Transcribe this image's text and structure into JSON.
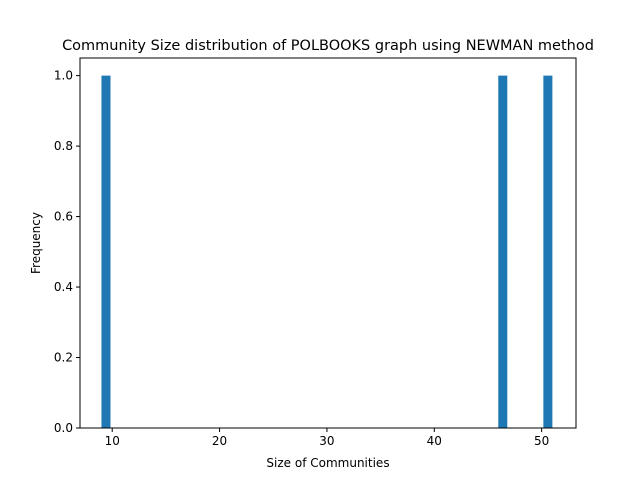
{
  "chart_data": {
    "type": "bar",
    "title": "Community Size distribution of POLBOOKS graph using NEWMAN method",
    "xlabel": "Size of Communities",
    "ylabel": "Frequency",
    "xlim": [
      7.0,
      53.2
    ],
    "ylim": [
      0.0,
      1.05
    ],
    "xticks": [
      10,
      20,
      30,
      40,
      50
    ],
    "yticks": [
      0.0,
      0.2,
      0.4,
      0.6,
      0.8,
      1.0
    ],
    "bin_width": 0.84,
    "bars": [
      {
        "x": 9.0,
        "value": 1.0
      },
      {
        "x": 45.96,
        "value": 1.0
      },
      {
        "x": 50.16,
        "value": 1.0
      }
    ],
    "bar_color": "#1f77b4",
    "grid": false,
    "legend": "none"
  }
}
